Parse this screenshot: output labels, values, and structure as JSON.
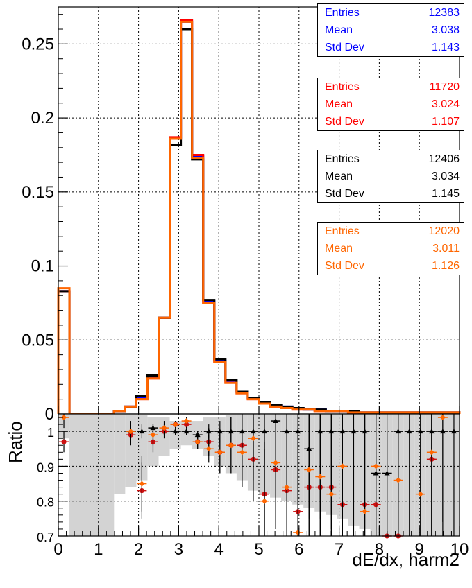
{
  "chart_data": [
    {
      "type": "line",
      "subtype": "step-histogram",
      "xlim": [
        0,
        10
      ],
      "ylim": [
        0,
        0.275
      ],
      "y_ticks": [
        0,
        0.05,
        0.1,
        0.15,
        0.2,
        0.25
      ],
      "y_tick_labels": [
        "0",
        "0.05",
        "0.1",
        "0.15",
        "0.2",
        "0.25"
      ],
      "grid": true,
      "bin_edges": [
        0.0,
        0.2778,
        0.5556,
        0.8333,
        1.1111,
        1.3889,
        1.6667,
        1.9444,
        2.2222,
        2.5,
        2.7778,
        3.0556,
        3.3333,
        3.6111,
        3.8889,
        4.1667,
        4.4444,
        4.7222,
        5.0,
        5.2778,
        5.5556,
        5.8333,
        6.1111,
        6.3889,
        6.6667,
        6.9444,
        7.2222,
        7.5,
        7.7778,
        8.0556,
        8.3333,
        8.6111,
        8.8889,
        9.1667,
        9.4444,
        9.7222,
        10.0
      ],
      "series": [
        {
          "color": "#0000ff",
          "values": [
            0.083,
            0,
            0,
            0,
            0,
            0.002,
            0.005,
            0.011,
            0.025,
            0.065,
            0.186,
            0.265,
            0.174,
            0.076,
            0.036,
            0.022,
            0.015,
            0.011,
            0.008,
            0.006,
            0.005,
            0.004,
            0.003,
            0.003,
            0.002,
            0.002,
            0.001,
            0.001,
            0.001,
            0.001,
            0.001,
            0.001,
            0.001,
            0.001,
            0.001,
            0.001
          ]
        },
        {
          "color": "#ff0000",
          "values": [
            0.083,
            0,
            0,
            0,
            0,
            0.002,
            0.005,
            0.01,
            0.024,
            0.065,
            0.187,
            0.266,
            0.175,
            0.075,
            0.035,
            0.021,
            0.014,
            0.01,
            0.007,
            0.005,
            0.004,
            0.003,
            0.003,
            0.002,
            0.002,
            0.002,
            0.001,
            0.001,
            0.001,
            0.001,
            0.001,
            0.001,
            0.001,
            0.001,
            0.001,
            0.001
          ]
        },
        {
          "color": "#000000",
          "values": [
            0.083,
            0,
            0,
            0,
            0,
            0.002,
            0.005,
            0.012,
            0.026,
            0.065,
            0.182,
            0.26,
            0.172,
            0.077,
            0.037,
            0.023,
            0.015,
            0.011,
            0.008,
            0.006,
            0.005,
            0.004,
            0.003,
            0.003,
            0.002,
            0.002,
            0.002,
            0.001,
            0.001,
            0.001,
            0.001,
            0.001,
            0.001,
            0.001,
            0.001,
            0.001
          ]
        },
        {
          "color": "#ff6600",
          "values": [
            0.085,
            0,
            0,
            0,
            0,
            0.002,
            0.005,
            0.01,
            0.024,
            0.065,
            0.186,
            0.265,
            0.173,
            0.075,
            0.035,
            0.021,
            0.014,
            0.01,
            0.007,
            0.005,
            0.004,
            0.003,
            0.003,
            0.002,
            0.002,
            0.002,
            0.001,
            0.001,
            0.001,
            0.001,
            0.001,
            0.001,
            0.001,
            0.001,
            0.001,
            0.001
          ]
        }
      ],
      "stats": [
        {
          "color": "#0000ff",
          "rows": [
            {
              "label": "Entries",
              "value": "12383"
            },
            {
              "label": "Mean",
              "value": "3.038"
            },
            {
              "label": "Std Dev",
              "value": "1.143"
            }
          ]
        },
        {
          "color": "#ff0000",
          "rows": [
            {
              "label": "Entries",
              "value": "11720"
            },
            {
              "label": "Mean",
              "value": "3.024"
            },
            {
              "label": "Std Dev",
              "value": "1.107"
            }
          ]
        },
        {
          "color": "#000000",
          "rows": [
            {
              "label": "Entries",
              "value": "12406"
            },
            {
              "label": "Mean",
              "value": "3.034"
            },
            {
              "label": "Std Dev",
              "value": "1.145"
            }
          ]
        },
        {
          "color": "#ff6600",
          "rows": [
            {
              "label": "Entries",
              "value": "12020"
            },
            {
              "label": "Mean",
              "value": "3.011"
            },
            {
              "label": "Std Dev",
              "value": "1.126"
            }
          ]
        }
      ]
    },
    {
      "type": "scatter",
      "subtype": "ratio-with-error-band",
      "xlabel": "dE/dx, harm2",
      "ylabel": "Ratio",
      "xlim": [
        0,
        10
      ],
      "ylim": [
        0.7,
        1.05
      ],
      "x_ticks": [
        0,
        1,
        2,
        3,
        4,
        5,
        6,
        7,
        8,
        9,
        10
      ],
      "x_tick_labels": [
        "0",
        "1",
        "2",
        "3",
        "4",
        "5",
        "6",
        "7",
        "8",
        "9",
        "10"
      ],
      "y_ticks": [
        0.7,
        0.8,
        0.9,
        1.0
      ],
      "y_tick_labels": [
        "0.7",
        "0.8",
        "0.9",
        "1"
      ],
      "grid": true,
      "band_color": "#d3d3d3",
      "band_x": [
        0.139,
        0.417,
        0.694,
        0.972,
        1.25,
        1.528,
        1.806,
        2.083,
        2.361,
        2.639,
        2.917,
        3.194,
        3.472,
        3.75,
        4.028,
        4.306,
        4.583,
        4.861,
        5.139,
        5.417,
        5.694,
        5.972,
        6.25,
        6.528,
        6.806,
        7.083,
        7.361,
        7.639,
        7.917,
        8.194,
        8.472,
        8.75,
        9.028,
        9.306,
        9.583,
        9.861
      ],
      "band_low": [
        0.98,
        0.7,
        0.7,
        0.7,
        0.7,
        0.82,
        0.84,
        0.86,
        0.9,
        0.93,
        0.95,
        0.96,
        0.95,
        0.93,
        0.9,
        0.88,
        0.86,
        0.83,
        0.82,
        0.81,
        0.8,
        0.79,
        0.78,
        0.77,
        0.76,
        0.75,
        0.73,
        0.72,
        0.7,
        0.7,
        0.7,
        0.7,
        0.7,
        0.7,
        0.7,
        0.7
      ],
      "band_high": [
        1.05,
        1.05,
        1.05,
        1.05,
        1.05,
        1.05,
        1.05,
        1.05,
        1.04,
        1.04,
        1.03,
        1.03,
        1.03,
        1.04,
        1.04,
        1.05,
        1.05,
        1.05,
        1.05,
        1.05,
        1.05,
        1.05,
        1.05,
        1.05,
        1.05,
        1.05,
        1.05,
        1.05,
        1.05,
        1.05,
        1.05,
        1.05,
        1.05,
        1.05,
        1.05,
        1.05
      ],
      "series": [
        {
          "color": "#000000",
          "marker": "triangle",
          "x": [
            1.806,
            2.083,
            2.361,
            2.639,
            2.917,
            3.194,
            3.472,
            3.75,
            4.028,
            4.306,
            4.583,
            4.861,
            5.139,
            5.417,
            5.694,
            5.972,
            6.25,
            6.528,
            6.806,
            7.083,
            7.361,
            7.639,
            7.917,
            8.194,
            8.472,
            8.75,
            9.028,
            9.306,
            9.583,
            9.861
          ],
          "y": [
            1.0,
            1.0,
            1.01,
            1.0,
            1.0,
            1.0,
            0.99,
            1.0,
            1.0,
            1.0,
            1.0,
            1.0,
            1.0,
            1.03,
            1.0,
            1.0,
            0.95,
            1.0,
            1.0,
            1.0,
            1.0,
            1.0,
            0.88,
            0.88,
            1.0,
            1.0,
            1.0,
            1.0,
            1.0,
            1.0
          ],
          "yerr": [
            0.02,
            0.02,
            0.01,
            0.01,
            0.01,
            0.01,
            0.01,
            0.02,
            0.03,
            0.04,
            0.06,
            0.08,
            0.1,
            0.12,
            0.15,
            0.17,
            0.2,
            0.25,
            0.28,
            0.3,
            0.3,
            0.3,
            0.3,
            0.3,
            0.3,
            0.3,
            0.3,
            0.3,
            0.3,
            0.3
          ]
        },
        {
          "color": "#cc1111",
          "marker": "circle",
          "x": [
            0.139,
            1.806,
            2.083,
            2.361,
            2.639,
            2.917,
            3.194,
            3.472,
            3.75,
            4.028,
            4.306,
            4.583,
            4.861,
            5.139,
            5.417,
            5.694,
            5.972,
            6.25,
            6.528,
            6.806,
            7.083,
            7.639,
            7.917,
            8.194,
            8.472,
            9.306
          ],
          "y": [
            0.97,
            0.99,
            0.83,
            0.97,
            1.0,
            1.02,
            1.02,
            0.97,
            0.97,
            0.94,
            0.96,
            0.96,
            0.92,
            0.82,
            0.89,
            0.83,
            0.77,
            0.84,
            0.84,
            0.84,
            0.79,
            0.79,
            0.79,
            0.7,
            0.7,
            0.92
          ],
          "yerr": [
            0.03,
            0.03,
            0.08,
            0.03,
            0.02,
            0.01,
            0.01,
            0.02,
            0.04,
            0.06,
            0.08,
            0.1,
            0.12,
            0.15,
            0.17,
            0.2,
            0.22,
            0.25,
            0.26,
            0.27,
            0.28,
            0.3,
            0.3,
            0.3,
            0.3,
            0.3
          ]
        },
        {
          "color": "#ff6600",
          "marker": "cross",
          "x": [
            0.139,
            1.806,
            2.083,
            2.361,
            2.639,
            2.917,
            3.194,
            3.472,
            3.75,
            4.028,
            4.306,
            4.583,
            4.861,
            5.139,
            5.417,
            5.694,
            5.972,
            6.25,
            6.528,
            6.806,
            7.083,
            7.639,
            7.917,
            8.472,
            9.028,
            9.306,
            9.583
          ],
          "y": [
            1.04,
            1.0,
            0.85,
            0.99,
            1.01,
            1.02,
            1.03,
            0.97,
            0.95,
            0.94,
            0.96,
            0.94,
            0.98,
            0.8,
            0.91,
            0.84,
            0.71,
            0.89,
            0.87,
            0.82,
            0.9,
            0.77,
            0.9,
            0.86,
            0.82,
            0.94,
            1.04
          ],
          "yerr": [
            0.03,
            0.03,
            0.08,
            0.03,
            0.02,
            0.01,
            0.01,
            0.02,
            0.04,
            0.06,
            0.08,
            0.1,
            0.12,
            0.15,
            0.17,
            0.2,
            0.22,
            0.25,
            0.26,
            0.27,
            0.28,
            0.3,
            0.3,
            0.3,
            0.3,
            0.3,
            0.3
          ]
        }
      ]
    }
  ]
}
